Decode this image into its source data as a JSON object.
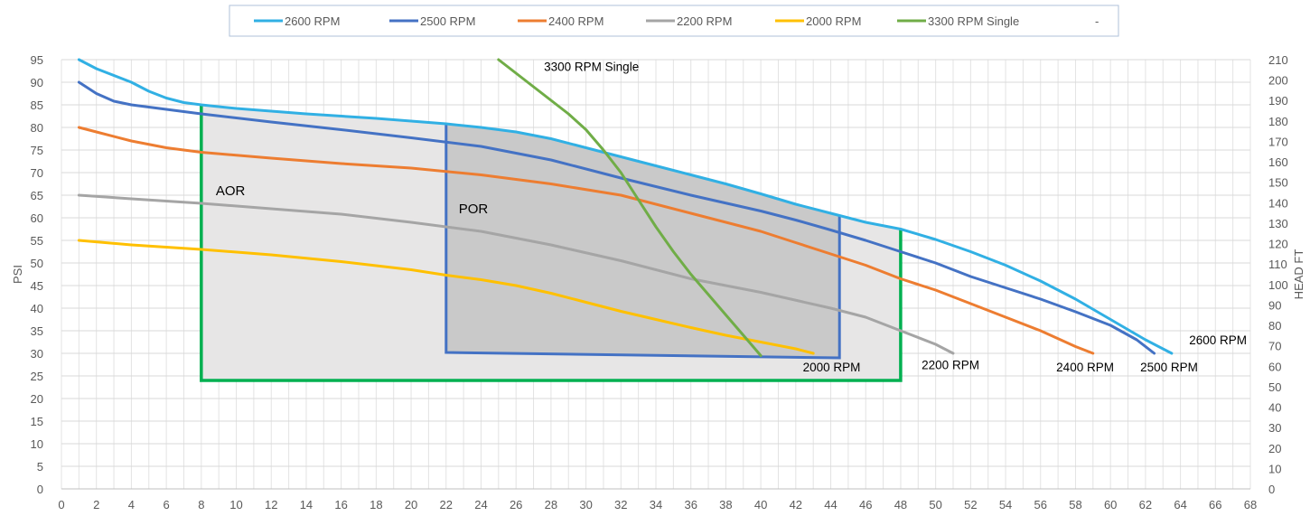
{
  "chart_data": {
    "type": "line",
    "title": "",
    "xlabel": "",
    "ylabel": "PSI",
    "y2label": "HEAD FT",
    "xlim": [
      0,
      68
    ],
    "ylim": [
      0,
      95
    ],
    "y2lim": [
      0,
      210
    ],
    "x_ticks": [
      0,
      2,
      4,
      6,
      8,
      10,
      12,
      14,
      16,
      18,
      20,
      22,
      24,
      26,
      28,
      30,
      32,
      34,
      36,
      38,
      40,
      42,
      44,
      46,
      48,
      50,
      52,
      54,
      56,
      58,
      60,
      62,
      64,
      66,
      68
    ],
    "y_ticks": [
      0,
      5,
      10,
      15,
      20,
      25,
      30,
      35,
      40,
      45,
      50,
      55,
      60,
      65,
      70,
      75,
      80,
      85,
      90,
      95
    ],
    "y2_ticks": [
      0,
      10,
      20,
      30,
      40,
      50,
      60,
      70,
      80,
      90,
      100,
      110,
      120,
      130,
      140,
      150,
      160,
      170,
      180,
      190,
      200,
      210
    ],
    "grid": true,
    "legend_position": "top",
    "legend_extra": "-",
    "series": [
      {
        "name": "2600 RPM",
        "color": "#31B0E4",
        "label": "2600 RPM",
        "points": [
          [
            1,
            95
          ],
          [
            2,
            93
          ],
          [
            4,
            90
          ],
          [
            5,
            88
          ],
          [
            6,
            86.5
          ],
          [
            7,
            85.5
          ],
          [
            8,
            85
          ],
          [
            10,
            84.2
          ],
          [
            14,
            83
          ],
          [
            18,
            82
          ],
          [
            22,
            80.8
          ],
          [
            24,
            80
          ],
          [
            26,
            79
          ],
          [
            28,
            77.5
          ],
          [
            30,
            75.5
          ],
          [
            32,
            73.5
          ],
          [
            34,
            71.5
          ],
          [
            36,
            69.5
          ],
          [
            38,
            67.5
          ],
          [
            40,
            65.3
          ],
          [
            42,
            63
          ],
          [
            44,
            61
          ],
          [
            46,
            59
          ],
          [
            48,
            57.5
          ],
          [
            50,
            55.2
          ],
          [
            52,
            52.5
          ],
          [
            54,
            49.5
          ],
          [
            56,
            46
          ],
          [
            58,
            42
          ],
          [
            60,
            37.5
          ],
          [
            62,
            33
          ],
          [
            63.5,
            30
          ]
        ]
      },
      {
        "name": "2500 RPM",
        "color": "#4472C4",
        "label": "2500 RPM",
        "points": [
          [
            1,
            90
          ],
          [
            2,
            87.5
          ],
          [
            3,
            85.8
          ],
          [
            4,
            85
          ],
          [
            6,
            84
          ],
          [
            8,
            83
          ],
          [
            12,
            81.2
          ],
          [
            16,
            79.5
          ],
          [
            20,
            77.7
          ],
          [
            24,
            75.8
          ],
          [
            28,
            72.8
          ],
          [
            32,
            68.8
          ],
          [
            36,
            65
          ],
          [
            40,
            61.5
          ],
          [
            42,
            59.5
          ],
          [
            44,
            57.3
          ],
          [
            46,
            55
          ],
          [
            48,
            52.5
          ],
          [
            50,
            50
          ],
          [
            52,
            47
          ],
          [
            54,
            44.5
          ],
          [
            56,
            42
          ],
          [
            58,
            39.2
          ],
          [
            60,
            36.2
          ],
          [
            61.5,
            33
          ],
          [
            62.5,
            30
          ]
        ]
      },
      {
        "name": "2400 RPM",
        "color": "#ED7D31",
        "label": "2400 RPM",
        "points": [
          [
            1,
            80
          ],
          [
            2,
            79
          ],
          [
            4,
            77
          ],
          [
            6,
            75.5
          ],
          [
            8,
            74.5
          ],
          [
            12,
            73.2
          ],
          [
            16,
            72
          ],
          [
            20,
            71
          ],
          [
            24,
            69.5
          ],
          [
            28,
            67.5
          ],
          [
            32,
            65
          ],
          [
            36,
            61
          ],
          [
            40,
            57
          ],
          [
            42,
            54.5
          ],
          [
            44,
            52
          ],
          [
            46,
            49.5
          ],
          [
            48,
            46.5
          ],
          [
            50,
            44
          ],
          [
            52,
            41
          ],
          [
            54,
            38
          ],
          [
            56,
            35
          ],
          [
            58,
            31.5
          ],
          [
            59,
            30
          ]
        ]
      },
      {
        "name": "2200 RPM",
        "color": "#A5A5A5",
        "label": "2200 RPM",
        "points": [
          [
            1,
            65
          ],
          [
            4,
            64.2
          ],
          [
            8,
            63.2
          ],
          [
            12,
            62
          ],
          [
            16,
            60.8
          ],
          [
            20,
            59
          ],
          [
            24,
            57
          ],
          [
            28,
            54
          ],
          [
            32,
            50.5
          ],
          [
            36,
            46.5
          ],
          [
            40,
            43.5
          ],
          [
            44,
            40
          ],
          [
            46,
            38
          ],
          [
            48,
            35
          ],
          [
            50,
            32
          ],
          [
            51,
            30
          ]
        ]
      },
      {
        "name": "2000 RPM",
        "color": "#FFC000",
        "label": "2000 RPM",
        "points": [
          [
            1,
            55
          ],
          [
            4,
            54
          ],
          [
            8,
            53
          ],
          [
            12,
            51.8
          ],
          [
            16,
            50.3
          ],
          [
            20,
            48.5
          ],
          [
            22,
            47.3
          ],
          [
            24,
            46.3
          ],
          [
            26,
            45
          ],
          [
            28,
            43.3
          ],
          [
            30,
            41.3
          ],
          [
            32,
            39.3
          ],
          [
            34,
            37.5
          ],
          [
            36,
            35.7
          ],
          [
            38,
            34
          ],
          [
            40,
            32.5
          ],
          [
            42,
            31
          ],
          [
            43,
            30
          ]
        ]
      },
      {
        "name": "3300 RPM Single",
        "color": "#70AD47",
        "label": "3300 RPM Single",
        "points": [
          [
            25,
            95
          ],
          [
            27,
            89
          ],
          [
            29,
            83
          ],
          [
            30,
            79.5
          ],
          [
            31,
            75
          ],
          [
            32,
            70
          ],
          [
            33,
            64
          ],
          [
            34,
            58
          ],
          [
            35,
            52.5
          ],
          [
            36,
            47.5
          ],
          [
            37,
            43
          ],
          [
            38,
            38.5
          ],
          [
            39,
            34
          ],
          [
            40,
            29.5
          ]
        ]
      }
    ],
    "regions": [
      {
        "name": "AOR",
        "label": "AOR",
        "fill": "#E7E6E6",
        "border": "#00B050",
        "polygon": [
          [
            8,
            85
          ],
          [
            22,
            80.8
          ],
          [
            24,
            80
          ],
          [
            28,
            77.5
          ],
          [
            32,
            73.5
          ],
          [
            36,
            69.5
          ],
          [
            40,
            65.3
          ],
          [
            44,
            61
          ],
          [
            48,
            57.5
          ],
          [
            48,
            24
          ],
          [
            8,
            24
          ]
        ]
      },
      {
        "name": "POR",
        "label": "POR",
        "fill": "#C9C9C9",
        "border": "#4472C4",
        "polygon": [
          [
            22,
            80.8
          ],
          [
            24,
            80
          ],
          [
            28,
            77.5
          ],
          [
            32,
            73.5
          ],
          [
            36,
            69.5
          ],
          [
            40,
            65.3
          ],
          [
            44,
            61
          ],
          [
            44.5,
            60.5
          ],
          [
            44.5,
            29
          ],
          [
            22,
            30.2
          ]
        ]
      }
    ]
  }
}
